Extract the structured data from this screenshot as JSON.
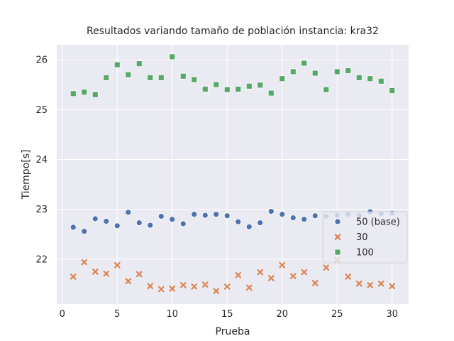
{
  "chart_data": {
    "type": "scatter",
    "title": "Resultados variando tamaño de población instancia: kra32",
    "xlabel": "Prueba",
    "ylabel": "Tiempo[s]",
    "xlim": [
      -0.5,
      31.5
    ],
    "ylim": [
      21.1,
      26.3
    ],
    "xticks": [
      "0",
      "5",
      "10",
      "15",
      "20",
      "25",
      "30"
    ],
    "yticks": [
      "22",
      "23",
      "24",
      "25",
      "26"
    ],
    "grid": true,
    "legend_position": "lower-right",
    "x": [
      1,
      2,
      3,
      4,
      5,
      6,
      7,
      8,
      9,
      10,
      11,
      12,
      13,
      14,
      15,
      16,
      17,
      18,
      19,
      20,
      21,
      22,
      23,
      24,
      25,
      26,
      27,
      28,
      29,
      30
    ],
    "series": [
      {
        "name": "50 (base)",
        "marker": "circle",
        "color": "#4c72b0",
        "values": [
          22.64,
          22.56,
          22.81,
          22.76,
          22.67,
          22.94,
          22.73,
          22.68,
          22.86,
          22.8,
          22.71,
          22.9,
          22.88,
          22.9,
          22.87,
          22.75,
          22.65,
          22.73,
          22.96,
          22.9,
          22.83,
          22.8,
          22.87,
          22.86,
          22.88,
          22.9,
          22.88,
          22.95,
          22.91,
          22.92
        ]
      },
      {
        "name": "30",
        "marker": "x",
        "color": "#dd8452",
        "values": [
          21.65,
          21.94,
          21.75,
          21.71,
          21.88,
          21.56,
          21.7,
          21.46,
          21.4,
          21.41,
          21.48,
          21.45,
          21.49,
          21.36,
          21.45,
          21.68,
          21.43,
          21.74,
          21.62,
          21.88,
          21.66,
          21.74,
          21.52,
          21.83,
          21.98,
          21.65,
          21.51,
          21.48,
          21.51,
          21.46
        ]
      },
      {
        "name": "100",
        "marker": "square",
        "color": "#55a868",
        "values": [
          25.32,
          25.35,
          25.3,
          25.64,
          25.9,
          25.7,
          25.92,
          25.64,
          25.64,
          26.06,
          25.67,
          25.6,
          25.41,
          25.5,
          25.4,
          25.41,
          25.47,
          25.49,
          25.33,
          25.62,
          25.76,
          25.93,
          25.73,
          25.4,
          25.76,
          25.78,
          25.64,
          25.62,
          25.57,
          25.38
        ]
      }
    ]
  }
}
